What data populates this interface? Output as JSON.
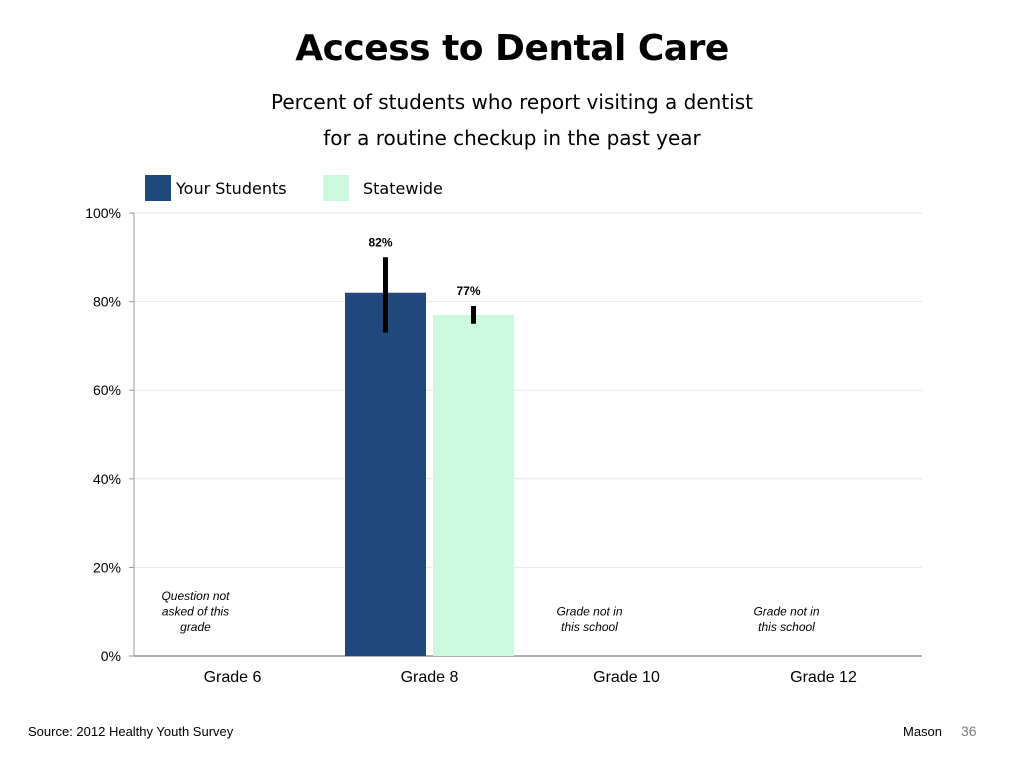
{
  "slide": {
    "title": "Access to Dental Care",
    "subtitle": "Percent of students who report visiting a dentist for a routine checkup in the past year",
    "source": "Source: 2012 Healthy Youth Survey",
    "author": "Mason",
    "page_number": "36"
  },
  "colors": {
    "your_students": "#1f497d",
    "statewide": "#ccf9dd",
    "error_bar": "#000000",
    "gridline": "#e8e8e8",
    "axis": "#999999"
  },
  "chart_data": {
    "type": "bar",
    "title": "Access to Dental Care",
    "xlabel": "",
    "ylabel": "",
    "ylim": [
      0,
      100
    ],
    "yticks": [
      0,
      20,
      40,
      60,
      80,
      100
    ],
    "ytick_labels": [
      "0%",
      "20%",
      "40%",
      "60%",
      "80%",
      "100%"
    ],
    "grid": true,
    "legend_position": "top-left",
    "categories": [
      "Grade 6",
      "Grade 8",
      "Grade 10",
      "Grade 12"
    ],
    "series": [
      {
        "name": "Your Students",
        "values": [
          null,
          82,
          null,
          null
        ],
        "error_low": [
          null,
          73,
          null,
          null
        ],
        "error_high": [
          null,
          90,
          null,
          null
        ],
        "data_labels": [
          "",
          "82%",
          "",
          ""
        ]
      },
      {
        "name": "Statewide",
        "values": [
          null,
          77,
          null,
          null
        ],
        "error_low": [
          null,
          75,
          null,
          null
        ],
        "error_high": [
          null,
          79,
          null,
          null
        ],
        "data_labels": [
          "",
          "77%",
          "",
          ""
        ]
      }
    ],
    "annotations": [
      {
        "category": "Grade 6",
        "text": "Question not asked of this grade"
      },
      {
        "category": "Grade 10",
        "text": "Grade not in this school"
      },
      {
        "category": "Grade 12",
        "text": "Grade not in this school"
      }
    ]
  }
}
